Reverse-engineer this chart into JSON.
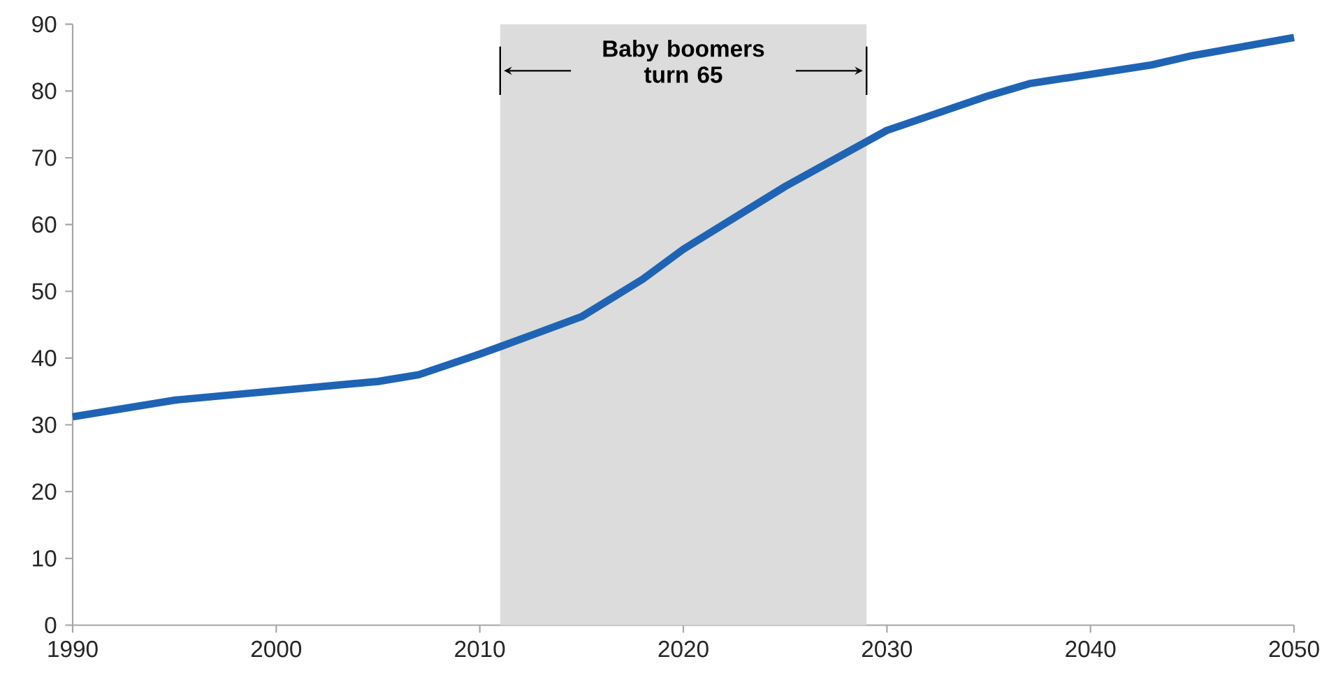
{
  "chart_data": {
    "type": "line",
    "x": [
      1990,
      1995,
      2000,
      2005,
      2007,
      2010,
      2011,
      2015,
      2018,
      2020,
      2025,
      2030,
      2035,
      2037,
      2040,
      2043,
      2045,
      2050
    ],
    "series": [
      {
        "color": "#1f64b4",
        "values": [
          31.2,
          33.7,
          35.1,
          36.5,
          37.5,
          40.6,
          41.7,
          46.2,
          51.8,
          56.3,
          65.7,
          74.1,
          79.3,
          81.1,
          82.5,
          83.9,
          85.3,
          88.0
        ]
      }
    ],
    "xlim": [
      1990,
      2050
    ],
    "xticks": [
      1990,
      2000,
      2010,
      2020,
      2030,
      2040,
      2050
    ],
    "ylim": [
      0,
      90
    ],
    "yticks": [
      0,
      10,
      20,
      30,
      40,
      50,
      60,
      70,
      80,
      90
    ],
    "bands": [
      {
        "axis": "x",
        "from": 2011,
        "to": 2029,
        "label": "Baby boomers turn 65",
        "color": "#dcdcdc"
      }
    ],
    "grid": false,
    "marker": "none",
    "line_style": "solid"
  }
}
